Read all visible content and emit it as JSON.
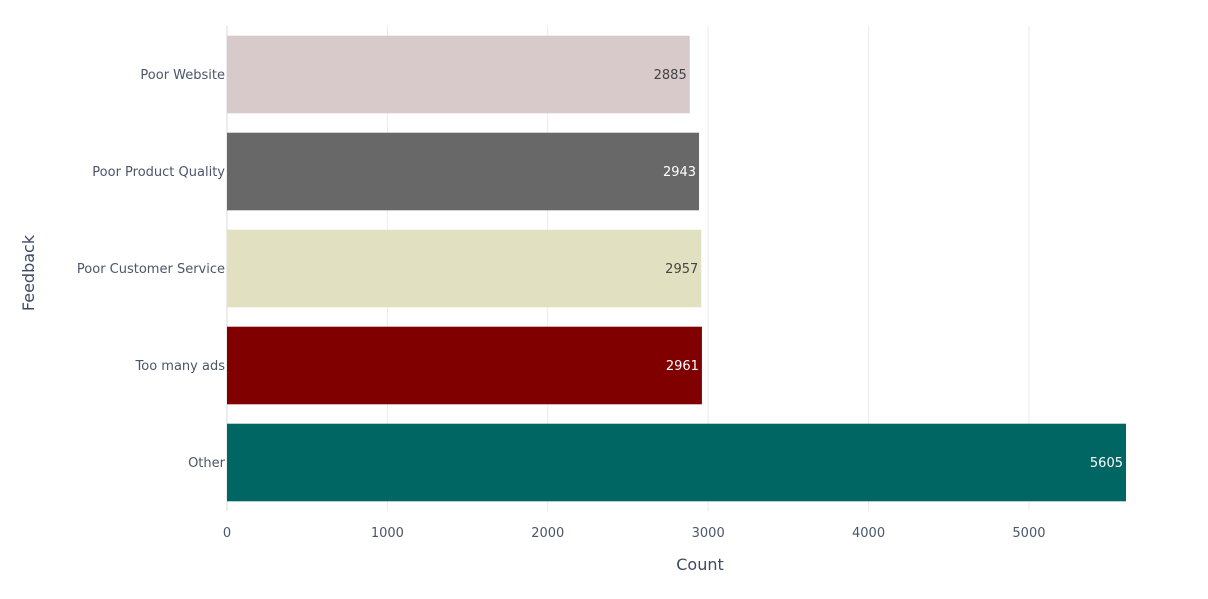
{
  "chart_data": {
    "type": "bar",
    "orientation": "horizontal",
    "title": "",
    "xlabel": "Count",
    "ylabel": "Feedback",
    "categories": [
      "Poor Website",
      "Poor Product Quality",
      "Poor Customer Service",
      "Too many ads",
      "Other"
    ],
    "values": [
      2885,
      2943,
      2957,
      2961,
      5605
    ],
    "data_labels": [
      "2885",
      "2943",
      "2957",
      "2961",
      "5605"
    ],
    "bar_colors": [
      "#d8cacb",
      "#686868",
      "#e1e1c1",
      "#800000",
      "#006664"
    ],
    "label_colors": [
      "#444444",
      "#ffffff",
      "#444444",
      "#ffffff",
      "#ffffff"
    ],
    "xlim": [
      0,
      5605
    ],
    "xticks": [
      0,
      1000,
      2000,
      3000,
      4000,
      5000
    ],
    "xtick_labels": [
      "0",
      "1000",
      "2000",
      "3000",
      "4000",
      "5000"
    ],
    "grid": true,
    "legend": "none"
  }
}
